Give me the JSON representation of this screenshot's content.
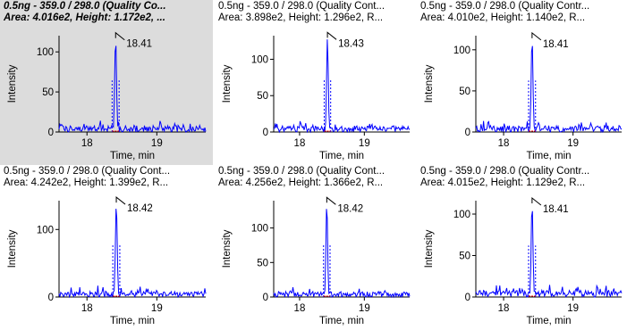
{
  "colors": {
    "trace": "#0000ff",
    "selected_bg": "#dcdcdc",
    "axis": "#000000",
    "baseline_marker": "#ff0000"
  },
  "panels": [
    {
      "title": "0.5ng - 359.0 / 298.0 (Quality Co...",
      "stats": "Area: 4.016e2, Height: 1.172e2, ...",
      "selected": true,
      "y_axis_label": "Intensity",
      "x_axis_label": "Time, min",
      "y_ticks": [
        "0",
        "50",
        "100"
      ],
      "x_ticks": [
        "18",
        "19"
      ],
      "peak_label": "18.41",
      "chart_data": {
        "type": "line",
        "peak_time": 18.41,
        "peak_height": 117.2,
        "xlim": [
          17.6,
          19.7
        ],
        "ylim": [
          0,
          118
        ]
      }
    },
    {
      "title": "0.5ng - 359.0 / 298.0 (Quality Cont...",
      "stats": "Area: 3.898e2, Height: 1.296e2, R...",
      "selected": false,
      "y_axis_label": "Intensity",
      "x_axis_label": "Time, min",
      "y_ticks": [
        "0",
        "50",
        "100"
      ],
      "x_ticks": [
        "18",
        "19"
      ],
      "peak_label": "18.43",
      "chart_data": {
        "type": "line",
        "peak_time": 18.43,
        "peak_height": 129.6,
        "xlim": [
          17.6,
          19.7
        ],
        "ylim": [
          0,
          130
        ]
      }
    },
    {
      "title": "0.5ng - 359.0 / 298.0 (Quality Contr...",
      "stats": "Area: 4.010e2, Height: 1.140e2, R...",
      "selected": false,
      "y_axis_label": "Intensity",
      "x_axis_label": "Time, min",
      "y_ticks": [
        "0",
        "50",
        "100"
      ],
      "x_ticks": [
        "18",
        "19"
      ],
      "peak_label": "18.41",
      "chart_data": {
        "type": "line",
        "peak_time": 18.41,
        "peak_height": 114.0,
        "xlim": [
          17.6,
          19.7
        ],
        "ylim": [
          0,
          115
        ]
      }
    },
    {
      "title": "0.5ng - 359.0 / 298.0 (Quality Cont...",
      "stats": "Area: 4.242e2, Height: 1.399e2, R...",
      "selected": false,
      "y_axis_label": "Intensity",
      "x_axis_label": "Time, min",
      "y_ticks": [
        "0",
        "100"
      ],
      "x_ticks": [
        "18",
        "19"
      ],
      "peak_label": "18.42",
      "chart_data": {
        "type": "line",
        "peak_time": 18.42,
        "peak_height": 139.9,
        "xlim": [
          17.6,
          19.7
        ],
        "ylim": [
          0,
          140
        ]
      }
    },
    {
      "title": "0.5ng - 359.0 / 298.0 (Quality Cont...",
      "stats": "Area: 4.256e2, Height: 1.366e2, R...",
      "selected": false,
      "y_axis_label": "Intensity",
      "x_axis_label": "Time, min",
      "y_ticks": [
        "0",
        "50",
        "100"
      ],
      "x_ticks": [
        "18",
        "19"
      ],
      "peak_label": "18.42",
      "chart_data": {
        "type": "line",
        "peak_time": 18.42,
        "peak_height": 136.6,
        "xlim": [
          17.6,
          19.7
        ],
        "ylim": [
          0,
          137
        ]
      }
    },
    {
      "title": "0.5ng - 359.0 / 298.0 (Quality Contr...",
      "stats": "Area: 4.015e2, Height: 1.129e2, R...",
      "selected": false,
      "y_axis_label": "Intensity",
      "x_axis_label": "Time, min",
      "y_ticks": [
        "0",
        "50",
        "100"
      ],
      "x_ticks": [
        "18",
        "19"
      ],
      "peak_label": "18.41",
      "chart_data": {
        "type": "line",
        "peak_time": 18.41,
        "peak_height": 112.9,
        "xlim": [
          17.6,
          19.7
        ],
        "ylim": [
          0,
          114
        ]
      }
    }
  ]
}
